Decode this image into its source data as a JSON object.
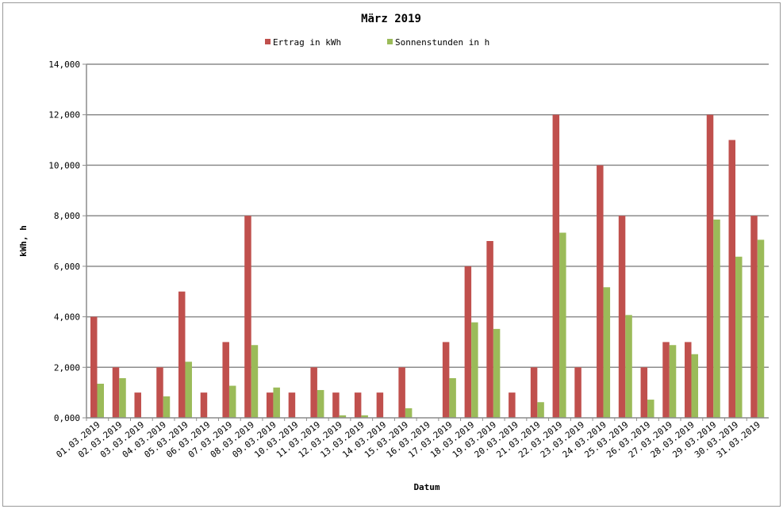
{
  "chart_data": {
    "type": "bar",
    "title": "März 2019",
    "xlabel": "Datum",
    "ylabel": "kWh, h",
    "ylim": [
      0,
      14
    ],
    "yticks": [
      "0,000",
      "2,000",
      "4,000",
      "6,000",
      "8,000",
      "10,000",
      "12,000",
      "14,000"
    ],
    "grid": true,
    "legend_position": "top",
    "categories": [
      "01.03.2019",
      "02.03.2019",
      "03.03.2019",
      "04.03.2019",
      "05.03.2019",
      "06.03.2019",
      "07.03.2019",
      "08.03.2019",
      "09.03.2019",
      "10.03.2019",
      "11.03.2019",
      "12.03.2019",
      "13.03.2019",
      "14.03.2019",
      "15.03.2019",
      "16.03.2019",
      "17.03.2019",
      "18.03.2019",
      "19.03.2019",
      "20.03.2019",
      "21.03.2019",
      "22.03.2019",
      "23.03.2019",
      "24.03.2019",
      "25.03.2019",
      "26.03.2019",
      "27.03.2019",
      "28.03.2019",
      "29.03.2019",
      "30.03.2019",
      "31.03.2019"
    ],
    "series": [
      {
        "name": "Ertrag in kWh",
        "color": "#c0504d",
        "values": [
          4,
          2,
          1,
          2,
          5,
          1,
          3,
          8,
          1,
          1,
          2,
          1,
          1,
          1,
          2,
          0,
          3,
          6,
          7,
          1,
          2,
          12,
          2,
          10,
          8,
          2,
          3,
          3,
          12,
          11,
          8
        ]
      },
      {
        "name": "Sonnenstunden in h",
        "color": "#9bbb59",
        "values": [
          1.35,
          1.57,
          0,
          0.85,
          2.22,
          0,
          1.27,
          2.88,
          1.2,
          0,
          1.1,
          0.1,
          0.1,
          0,
          0.38,
          0,
          1.57,
          3.78,
          3.52,
          0,
          0.62,
          7.33,
          0,
          5.17,
          4.07,
          0.72,
          2.88,
          2.52,
          7.85,
          6.38,
          7.05
        ]
      }
    ]
  }
}
